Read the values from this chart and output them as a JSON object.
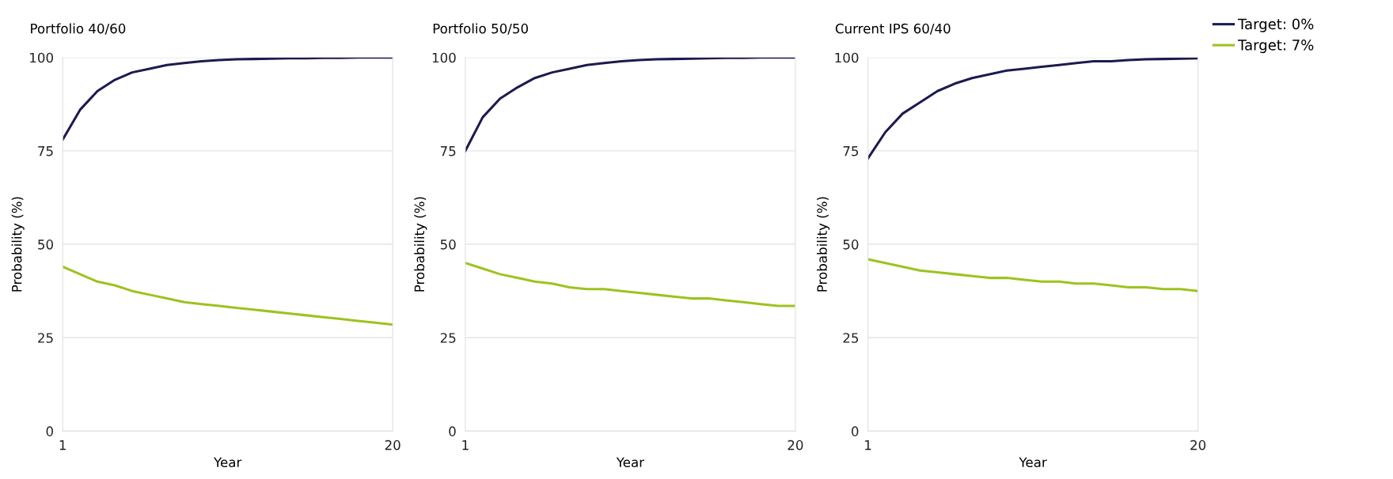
{
  "chart_data": [
    {
      "type": "line",
      "title": "Portfolio 40/60",
      "xlabel": "Year",
      "ylabel": "Probability (%)",
      "x": [
        1,
        2,
        3,
        4,
        5,
        6,
        7,
        8,
        9,
        10,
        11,
        12,
        13,
        14,
        15,
        16,
        17,
        18,
        19,
        20
      ],
      "xlim": [
        1,
        20
      ],
      "xticks": [
        1,
        20
      ],
      "ylim": [
        0,
        100
      ],
      "yticks": [
        0,
        25,
        50,
        75,
        100
      ],
      "grid": "y",
      "series": [
        {
          "color": "#1c1b4f",
          "values": [
            78,
            86,
            91,
            94,
            96,
            97,
            98,
            98.5,
            99,
            99.3,
            99.5,
            99.6,
            99.7,
            99.8,
            99.8,
            99.9,
            99.9,
            100,
            100,
            100
          ]
        },
        {
          "color": "#9cc31f",
          "values": [
            44,
            42,
            40,
            39,
            37.5,
            36.5,
            35.5,
            34.5,
            34,
            33.5,
            33,
            32.5,
            32,
            31.5,
            31,
            30.5,
            30,
            29.5,
            29,
            28.5
          ]
        }
      ]
    },
    {
      "type": "line",
      "title": "Portfolio 50/50",
      "xlabel": "Year",
      "ylabel": "Probability (%)",
      "x": [
        1,
        2,
        3,
        4,
        5,
        6,
        7,
        8,
        9,
        10,
        11,
        12,
        13,
        14,
        15,
        16,
        17,
        18,
        19,
        20
      ],
      "xlim": [
        1,
        20
      ],
      "xticks": [
        1,
        20
      ],
      "ylim": [
        0,
        100
      ],
      "yticks": [
        0,
        25,
        50,
        75,
        100
      ],
      "grid": "y",
      "series": [
        {
          "color": "#1c1b4f",
          "values": [
            75,
            84,
            89,
            92,
            94.5,
            96,
            97,
            98,
            98.5,
            99,
            99.3,
            99.5,
            99.6,
            99.7,
            99.8,
            99.9,
            99.9,
            100,
            100,
            100
          ]
        },
        {
          "color": "#9cc31f",
          "values": [
            45,
            43.5,
            42,
            41,
            40,
            39.5,
            38.5,
            38,
            38,
            37.5,
            37,
            36.5,
            36,
            35.5,
            35.5,
            35,
            34.5,
            34,
            33.5,
            33.5
          ]
        }
      ]
    },
    {
      "type": "line",
      "title": "Current IPS 60/40",
      "xlabel": "Year",
      "ylabel": "Probability (%)",
      "x": [
        1,
        2,
        3,
        4,
        5,
        6,
        7,
        8,
        9,
        10,
        11,
        12,
        13,
        14,
        15,
        16,
        17,
        18,
        19,
        20
      ],
      "xlim": [
        1,
        20
      ],
      "xticks": [
        1,
        20
      ],
      "ylim": [
        0,
        100
      ],
      "yticks": [
        0,
        25,
        50,
        75,
        100
      ],
      "grid": "y",
      "legend": "top right",
      "series": [
        {
          "name": "Target: 0%",
          "color": "#1c1b4f",
          "values": [
            73,
            80,
            85,
            88,
            91,
            93,
            94.5,
            95.5,
            96.5,
            97,
            97.5,
            98,
            98.5,
            99,
            99,
            99.3,
            99.5,
            99.6,
            99.7,
            99.8
          ]
        },
        {
          "name": "Target: 7%",
          "color": "#9cc31f",
          "values": [
            46,
            45,
            44,
            43,
            42.5,
            42,
            41.5,
            41,
            41,
            40.5,
            40,
            40,
            39.5,
            39.5,
            39,
            38.5,
            38.5,
            38,
            38,
            37.5
          ]
        }
      ]
    }
  ]
}
